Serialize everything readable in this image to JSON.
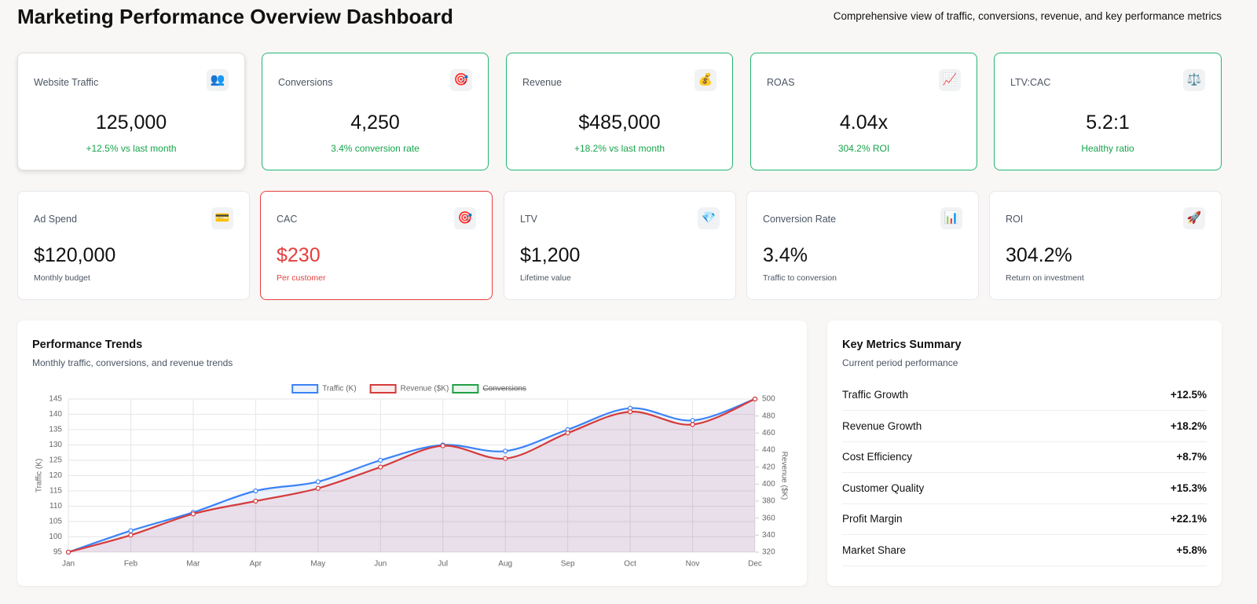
{
  "header": {
    "title": "Marketing Performance Overview Dashboard",
    "subtitle": "Comprehensive view of traffic, conversions, revenue, and key performance metrics"
  },
  "primary_kpis": [
    {
      "label": "Website Traffic",
      "icon": "👥",
      "value": "125,000",
      "note": "+12.5% vs last month",
      "status": "neutral"
    },
    {
      "label": "Conversions",
      "icon": "🎯",
      "value": "4,250",
      "note": "3.4% conversion rate",
      "status": "success"
    },
    {
      "label": "Revenue",
      "icon": "💰",
      "value": "$485,000",
      "note": "+18.2% vs last month",
      "status": "success"
    },
    {
      "label": "ROAS",
      "icon": "📈",
      "value": "4.04x",
      "note": "304.2% ROI",
      "status": "success"
    },
    {
      "label": "LTV:CAC",
      "icon": "⚖️",
      "value": "5.2:1",
      "note": "Healthy ratio",
      "status": "success"
    }
  ],
  "secondary_kpis": [
    {
      "label": "Ad Spend",
      "icon": "💳",
      "value": "$120,000",
      "note": "Monthly budget",
      "status": "neutral"
    },
    {
      "label": "CAC",
      "icon": "🎯",
      "value": "$230",
      "note": "Per customer",
      "status": "danger"
    },
    {
      "label": "LTV",
      "icon": "💎",
      "value": "$1,200",
      "note": "Lifetime value",
      "status": "neutral"
    },
    {
      "label": "Conversion Rate",
      "icon": "📊",
      "value": "3.4%",
      "note": "Traffic to conversion",
      "status": "neutral"
    },
    {
      "label": "ROI",
      "icon": "🚀",
      "value": "304.2%",
      "note": "Return on investment",
      "status": "neutral"
    }
  ],
  "chart_panel": {
    "title": "Performance Trends",
    "subtitle": "Monthly traffic, conversions, and revenue trends"
  },
  "chart_data": {
    "type": "line",
    "categories": [
      "Jan",
      "Feb",
      "Mar",
      "Apr",
      "May",
      "Jun",
      "Jul",
      "Aug",
      "Sep",
      "Oct",
      "Nov",
      "Dec"
    ],
    "series": [
      {
        "name": "Traffic (K)",
        "color": "#3b82f6",
        "fill": "rgba(59,130,246,0.10)",
        "axis": "y",
        "values": [
          95,
          102,
          108,
          115,
          118,
          125,
          130,
          128,
          135,
          142,
          138,
          145
        ]
      },
      {
        "name": "Revenue ($K)",
        "color": "#d63b3b",
        "fill": "rgba(214,59,59,0.10)",
        "axis": "y2",
        "values": [
          320,
          340,
          365,
          380,
          395,
          420,
          445,
          430,
          460,
          485,
          470,
          500
        ]
      },
      {
        "name": "Conversions",
        "color": "#22a045",
        "hidden": true,
        "values": [
          null,
          null,
          null,
          null,
          null,
          null,
          null,
          null,
          null,
          null,
          null,
          null
        ]
      }
    ],
    "ylabel": "Traffic (K)",
    "y2label": "Revenue ($K)",
    "ylim": [
      95,
      145
    ],
    "yticks": [
      95,
      100,
      105,
      110,
      115,
      120,
      125,
      130,
      135,
      140,
      145
    ],
    "y2lim": [
      320,
      500
    ],
    "y2ticks": [
      320,
      340,
      360,
      380,
      400,
      420,
      440,
      460,
      480,
      500
    ],
    "grid": true,
    "legend": "top"
  },
  "summary": {
    "title": "Key Metrics Summary",
    "subtitle": "Current period performance",
    "rows": [
      {
        "label": "Traffic Growth",
        "value": "+12.5%"
      },
      {
        "label": "Revenue Growth",
        "value": "+18.2%"
      },
      {
        "label": "Cost Efficiency",
        "value": "+8.7%"
      },
      {
        "label": "Customer Quality",
        "value": "+15.3%"
      },
      {
        "label": "Profit Margin",
        "value": "+22.1%"
      },
      {
        "label": "Market Share",
        "value": "+5.8%"
      }
    ]
  }
}
